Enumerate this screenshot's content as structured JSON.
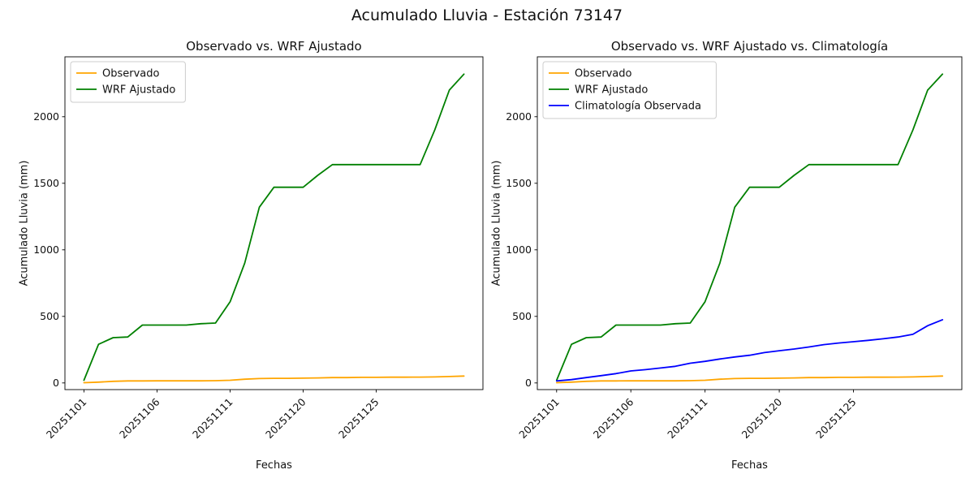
{
  "figure": {
    "title": "Acumulado Lluvia - Estación 73147",
    "background": "#ffffff"
  },
  "chart_data": [
    {
      "type": "line",
      "title": "Observado vs. WRF Ajustado",
      "xlabel": "Fechas",
      "ylabel": "Acumulado Lluvia (mm)",
      "x_tick_labels": [
        "20251101",
        "20251106",
        "20251111",
        "20251120",
        "20251125"
      ],
      "x_tick_positions": [
        0,
        5,
        10,
        15,
        20
      ],
      "n_points": 27,
      "xlim": [
        -1.3,
        27.3
      ],
      "ylim": [
        -50,
        2450
      ],
      "y_ticks": [
        0,
        500,
        1000,
        1500,
        2000
      ],
      "grid": false,
      "legend": {
        "position": "upper left"
      },
      "series": [
        {
          "name": "Observado",
          "color": "#ffa500",
          "values": [
            2,
            6,
            12,
            15,
            15,
            16,
            16,
            16,
            16,
            17,
            20,
            28,
            33,
            35,
            35,
            36,
            38,
            40,
            40,
            42,
            42,
            43,
            43,
            44,
            45,
            48,
            52
          ]
        },
        {
          "name": "WRF Ajustado",
          "color": "#008000",
          "values": [
            20,
            290,
            340,
            345,
            435,
            435,
            435,
            435,
            445,
            450,
            610,
            900,
            1320,
            1470,
            1470,
            1470,
            1560,
            1640,
            1640,
            1640,
            1640,
            1640,
            1640,
            1640,
            1900,
            2200,
            2320
          ]
        }
      ]
    },
    {
      "type": "line",
      "title": "Observado vs. WRF Ajustado vs. Climatología",
      "xlabel": "Fechas",
      "ylabel": "Acumulado Lluvia (mm)",
      "x_tick_labels": [
        "20251101",
        "20251106",
        "20251111",
        "20251120",
        "20251125"
      ],
      "x_tick_positions": [
        0,
        5,
        10,
        15,
        20
      ],
      "n_points": 27,
      "xlim": [
        -1.3,
        27.3
      ],
      "ylim": [
        -50,
        2450
      ],
      "y_ticks": [
        0,
        500,
        1000,
        1500,
        2000
      ],
      "grid": false,
      "legend": {
        "position": "upper left"
      },
      "series": [
        {
          "name": "Observado",
          "color": "#ffa500",
          "values": [
            2,
            6,
            12,
            15,
            15,
            16,
            16,
            16,
            16,
            17,
            20,
            28,
            33,
            35,
            35,
            36,
            38,
            40,
            40,
            42,
            42,
            43,
            43,
            44,
            45,
            48,
            52
          ]
        },
        {
          "name": "WRF Ajustado",
          "color": "#008000",
          "values": [
            20,
            290,
            340,
            345,
            435,
            435,
            435,
            435,
            445,
            450,
            610,
            900,
            1320,
            1470,
            1470,
            1470,
            1560,
            1640,
            1640,
            1640,
            1640,
            1640,
            1640,
            1640,
            1900,
            2200,
            2320
          ]
        },
        {
          "name": "Climatología Observada",
          "color": "#0000ff",
          "values": [
            15,
            25,
            40,
            55,
            70,
            90,
            100,
            112,
            125,
            148,
            162,
            180,
            195,
            208,
            228,
            242,
            255,
            270,
            288,
            300,
            310,
            320,
            332,
            345,
            365,
            430,
            475
          ]
        }
      ]
    }
  ]
}
